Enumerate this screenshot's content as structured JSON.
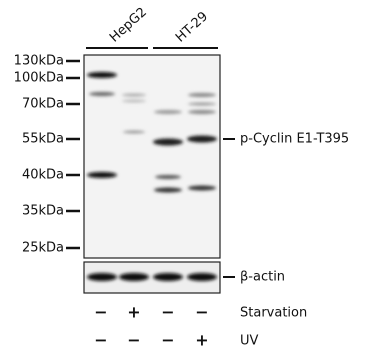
{
  "header": {
    "groups": [
      {
        "label": "HepG2"
      },
      {
        "label": "HT-29"
      }
    ]
  },
  "markers": [
    "130kDa",
    "100kDa",
    "70kDa",
    "55kDa",
    "40kDa",
    "35kDa",
    "25kDa"
  ],
  "targets": {
    "main": "p-Cyclin E1-T395",
    "control": "β-actin"
  },
  "treatments": [
    {
      "name": "Starvation",
      "signs": [
        "−",
        "+",
        "−",
        "−"
      ]
    },
    {
      "name": "UV",
      "signs": [
        "−",
        "−",
        "−",
        "+"
      ]
    }
  ]
}
